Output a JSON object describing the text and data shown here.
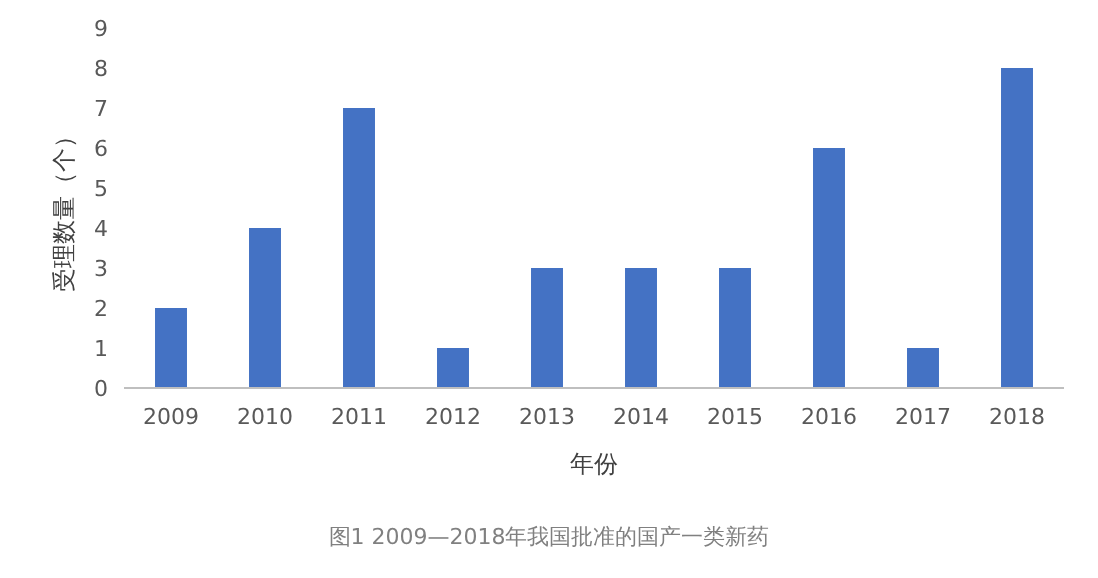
{
  "chart_data": {
    "type": "bar",
    "xlabel": "年份",
    "ylabel": "受理数量（个）",
    "categories": [
      "2009",
      "2010",
      "2011",
      "2012",
      "2013",
      "2014",
      "2015",
      "2016",
      "2017",
      "2018"
    ],
    "values": [
      2,
      4,
      7,
      1,
      3,
      3,
      3,
      6,
      1,
      8
    ],
    "color": "#4472c4",
    "ylim": [
      0,
      9
    ],
    "yticks": [
      0,
      1,
      2,
      3,
      4,
      5,
      6,
      7,
      8,
      9
    ],
    "grid": false,
    "annotations": [
      "图1  2009—2018年我国批准的国产一类新药"
    ]
  }
}
